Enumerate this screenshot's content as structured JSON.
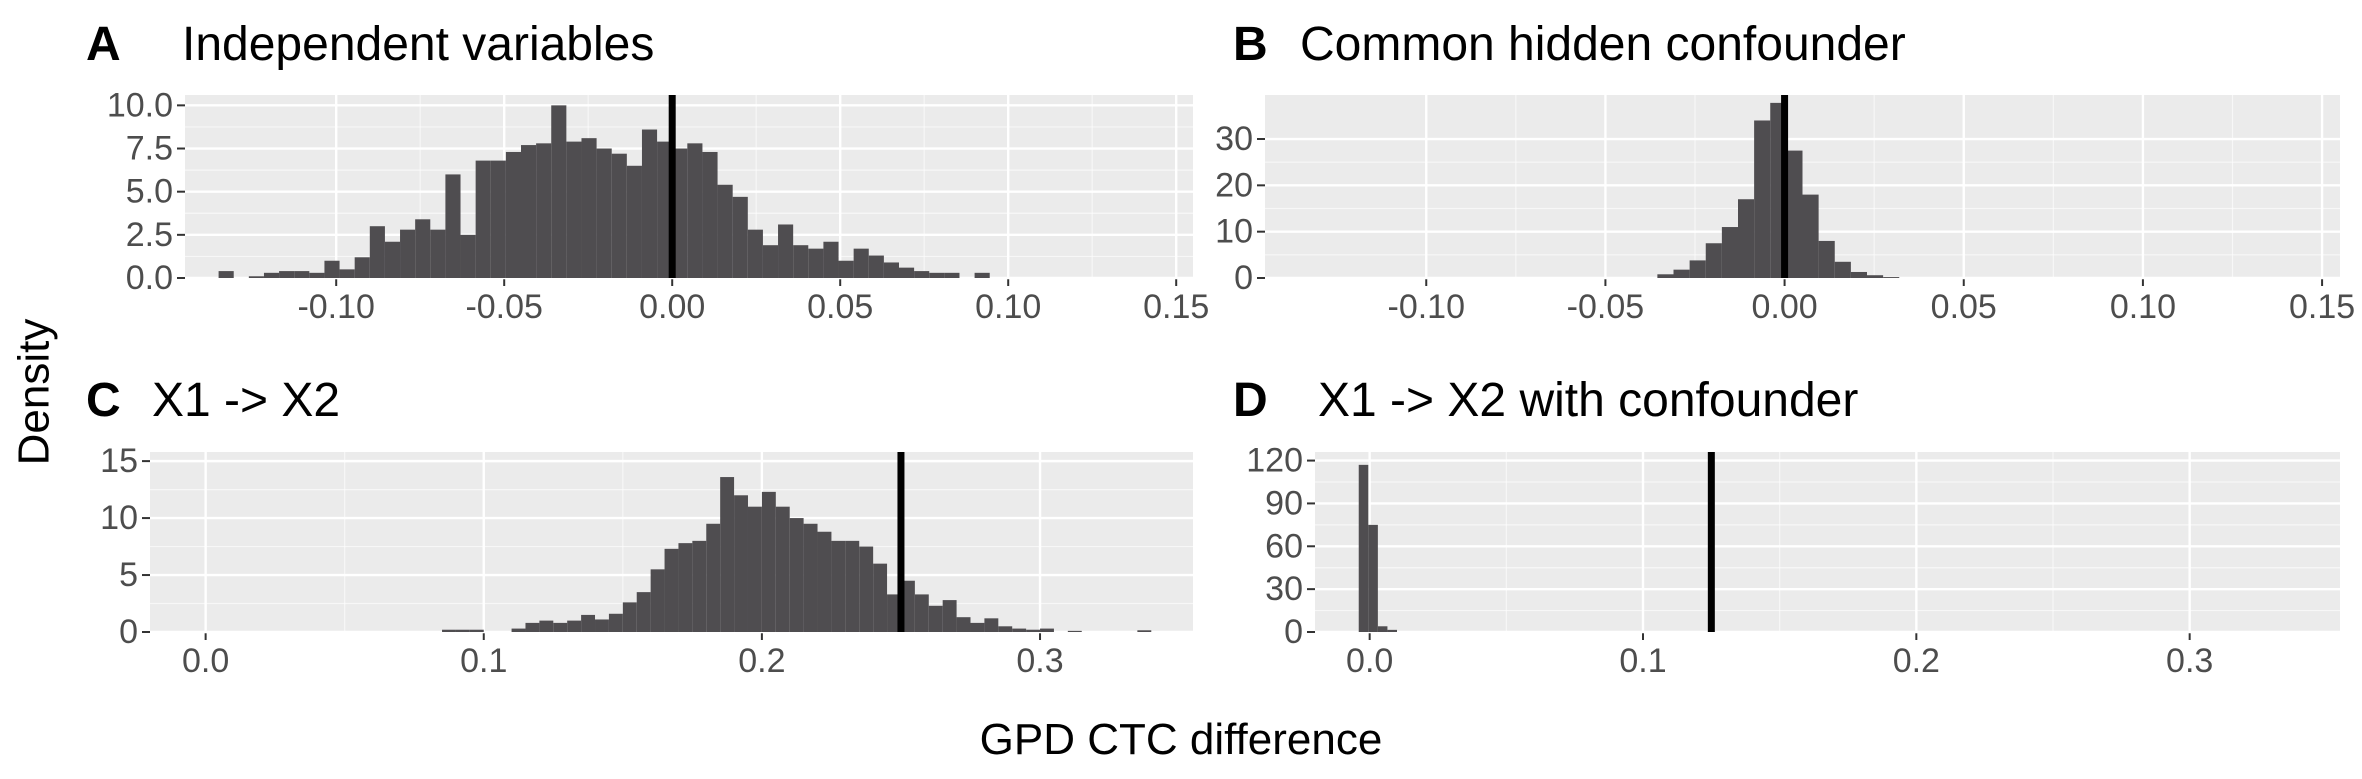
{
  "figure": {
    "ylabel": "Density",
    "xlabel": "GPD CTC difference"
  },
  "chart_data": [
    {
      "type": "bar",
      "panel": "A",
      "title": "Independent variables",
      "xlim": [
        -0.145,
        0.155
      ],
      "ylim": [
        0,
        10.6
      ],
      "xticks": [
        -0.1,
        -0.05,
        0.0,
        0.05,
        0.1,
        0.15
      ],
      "xtick_labels": [
        "-0.10",
        "-0.05",
        "0.00",
        "0.05",
        "0.10",
        "0.15"
      ],
      "yticks": [
        0,
        2.5,
        5,
        7.5,
        10
      ],
      "ytick_labels": [
        "0.0",
        "2.5",
        "5.0",
        "7.5",
        "10.0"
      ],
      "bin_start": -0.135,
      "bin_width": 0.0045,
      "values": [
        0.4,
        0,
        0.1,
        0.3,
        0.4,
        0.4,
        0.3,
        1.0,
        0.5,
        1.2,
        3.0,
        2.1,
        2.8,
        3.4,
        2.8,
        6.0,
        2.5,
        6.8,
        6.8,
        7.3,
        7.7,
        7.8,
        10.0,
        7.9,
        8.1,
        7.5,
        7.2,
        6.5,
        8.6,
        7.9,
        7.5,
        7.8,
        7.3,
        5.4,
        4.7,
        2.8,
        1.9,
        3.1,
        1.9,
        1.7,
        2.1,
        1.0,
        1.7,
        1.3,
        0.9,
        0.6,
        0.4,
        0.3,
        0.3,
        0,
        0.3
      ],
      "vline": 0.0,
      "grid": true,
      "legend": "none"
    },
    {
      "type": "bar",
      "panel": "B",
      "title": "Common hidden confounder",
      "xlim": [
        -0.145,
        0.155
      ],
      "ylim": [
        0,
        39.5
      ],
      "xticks": [
        -0.1,
        -0.05,
        0.0,
        0.05,
        0.1,
        0.15
      ],
      "xtick_labels": [
        "-0.10",
        "-0.05",
        "0.00",
        "0.05",
        "0.10",
        "0.15"
      ],
      "yticks": [
        0,
        10,
        20,
        30
      ],
      "ytick_labels": [
        "0",
        "10",
        "20",
        "30"
      ],
      "bin_start": -0.0355,
      "bin_width": 0.0045,
      "values": [
        0.8,
        1.8,
        3.8,
        7.5,
        11.0,
        17.0,
        34.0,
        37.8,
        27.5,
        18.0,
        8.0,
        3.5,
        1.3,
        0.6,
        0.2
      ],
      "vline": 0.0,
      "grid": true,
      "legend": "none"
    },
    {
      "type": "bar",
      "panel": "C",
      "title": "X1 -> X2",
      "xlim": [
        -0.02,
        0.355
      ],
      "ylim": [
        0,
        15.8
      ],
      "xticks": [
        0.0,
        0.1,
        0.2,
        0.3
      ],
      "xtick_labels": [
        "0.0",
        "0.1",
        "0.2",
        "0.3"
      ],
      "yticks": [
        0,
        5,
        10,
        15
      ],
      "ytick_labels": [
        "0",
        "5",
        "10",
        "15"
      ],
      "bin_start": 0.085,
      "bin_width": 0.005,
      "values": [
        0.2,
        0.2,
        0.2,
        0,
        0,
        0.3,
        0.8,
        1.0,
        0.8,
        1.0,
        1.5,
        1.1,
        1.6,
        2.6,
        3.5,
        5.5,
        7.3,
        7.8,
        8.0,
        9.5,
        13.6,
        12.0,
        11.0,
        12.3,
        11.0,
        10.0,
        9.5,
        8.8,
        8.0,
        8.0,
        7.5,
        6.0,
        3.3,
        4.5,
        3.3,
        2.3,
        2.8,
        1.3,
        0.8,
        1.2,
        0.5,
        0.3,
        0.2,
        0.3,
        0,
        0.1,
        0,
        0,
        0,
        0,
        0.15
      ],
      "vline": 0.25,
      "grid": true,
      "legend": "none"
    },
    {
      "type": "bar",
      "panel": "D",
      "title": "X1 -> X2 with confounder",
      "xlim": [
        -0.02,
        0.355
      ],
      "ylim": [
        0,
        126
      ],
      "xticks": [
        0.0,
        0.1,
        0.2,
        0.3
      ],
      "xtick_labels": [
        "0.0",
        "0.1",
        "0.2",
        "0.3"
      ],
      "yticks": [
        0,
        30,
        60,
        90,
        120
      ],
      "ytick_labels": [
        "0",
        "30",
        "60",
        "90",
        "120"
      ],
      "bin_start": -0.004,
      "bin_width": 0.0035,
      "values": [
        117,
        75,
        4,
        1.5
      ],
      "vline": 0.125,
      "grid": true,
      "legend": "none"
    }
  ],
  "colors": {
    "panel_bg": "#ebebeb",
    "grid_major": "#ffffff",
    "bar_fill": "#4f4d50",
    "vline": "#000000"
  }
}
